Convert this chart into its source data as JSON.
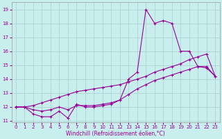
{
  "bg_color": "#c8eeee",
  "grid_color": "#aacccc",
  "line_color": "#990099",
  "xlabel": "Windchill (Refroidissement éolien,°C)",
  "x": [
    0,
    1,
    2,
    3,
    4,
    5,
    6,
    7,
    8,
    9,
    10,
    11,
    12,
    13,
    14,
    15,
    16,
    17,
    18,
    19,
    20,
    21,
    22,
    23
  ],
  "line1": [
    12.0,
    12.0,
    11.5,
    11.3,
    11.3,
    11.7,
    11.2,
    12.2,
    12.0,
    12.0,
    12.1,
    12.2,
    12.5,
    14.0,
    14.5,
    19.0,
    18.0,
    18.2,
    18.0,
    16.0,
    16.0,
    14.9,
    14.8,
    14.2
  ],
  "line2": [
    12.0,
    12.0,
    12.1,
    12.3,
    12.5,
    12.7,
    12.9,
    13.1,
    13.2,
    13.3,
    13.4,
    13.5,
    13.6,
    13.8,
    14.0,
    14.2,
    14.5,
    14.7,
    14.9,
    15.1,
    15.4,
    15.6,
    15.8,
    14.2
  ],
  "line3": [
    12.0,
    12.0,
    11.8,
    11.7,
    11.8,
    12.0,
    11.8,
    12.1,
    12.1,
    12.1,
    12.2,
    12.3,
    12.5,
    12.9,
    13.3,
    13.6,
    13.9,
    14.1,
    14.3,
    14.5,
    14.7,
    14.9,
    14.9,
    14.2
  ],
  "ylim": [
    10.9,
    19.5
  ],
  "xlim": [
    -0.5,
    23.5
  ],
  "yticks": [
    11,
    12,
    13,
    14,
    15,
    16,
    17,
    18,
    19
  ],
  "xticks": [
    0,
    1,
    2,
    3,
    4,
    5,
    6,
    7,
    8,
    9,
    10,
    11,
    12,
    13,
    14,
    15,
    16,
    17,
    18,
    19,
    20,
    21,
    22,
    23
  ],
  "figsize": [
    3.2,
    2.0
  ],
  "dpi": 100,
  "tick_fontsize": 5,
  "xlabel_fontsize": 5.5,
  "lw": 0.8,
  "ms": 2.5
}
